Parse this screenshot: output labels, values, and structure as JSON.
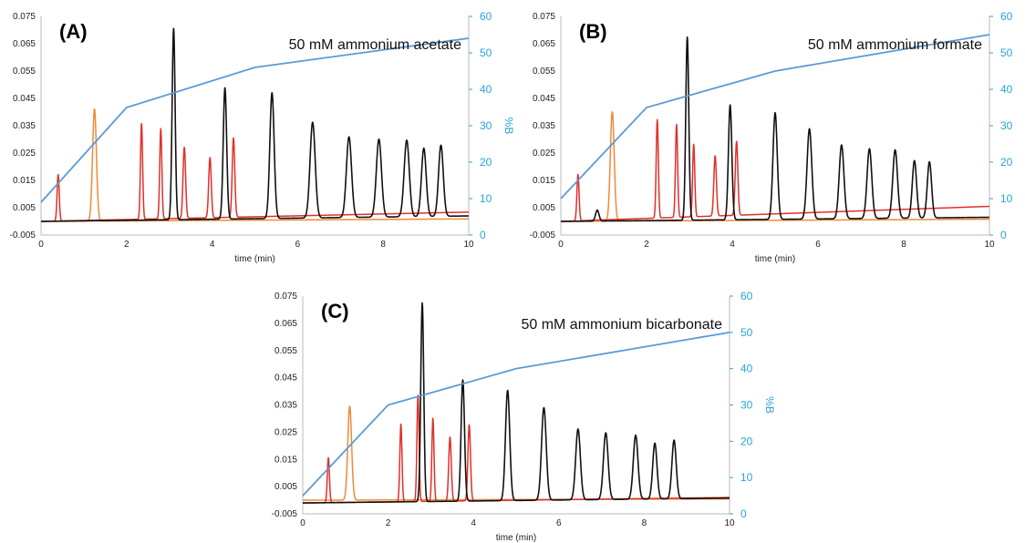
{
  "chart_data": [
    {
      "type": "line",
      "panel_label": "(A)",
      "annotation": "50 mM ammonium acetate",
      "xlabel": "time (min)",
      "ylabel": "",
      "y2label": "%B",
      "xlim": [
        0,
        10
      ],
      "ylim": [
        -0.005,
        0.075
      ],
      "y2lim": [
        0,
        60
      ],
      "x_ticks": [
        "0",
        "2",
        "4",
        "6",
        "8",
        "10"
      ],
      "y_ticks": [
        "-0.005",
        "0.005",
        "0.015",
        "0.025",
        "0.035",
        "0.045",
        "0.055",
        "0.065",
        "0.075"
      ],
      "y2_ticks": [
        "0",
        "10",
        "20",
        "30",
        "40",
        "50",
        "60"
      ],
      "colors": {
        "black": "#111111",
        "red": "#e0302a",
        "orange": "#ee8a3a",
        "blue": "#5b9bd5"
      },
      "gradient": [
        [
          0,
          9
        ],
        [
          2,
          35
        ],
        [
          5,
          46
        ],
        [
          10,
          54
        ]
      ],
      "baselines": {
        "black": [
          0.0,
          0.002
        ],
        "red": [
          0.0,
          0.0034
        ],
        "orange": [
          0.0,
          0.0009
        ]
      },
      "black_peaks": [
        [
          3.1,
          0.07,
          0.035
        ],
        [
          4.3,
          0.048,
          0.04
        ],
        [
          5.4,
          0.046,
          0.05
        ],
        [
          6.35,
          0.035,
          0.06
        ],
        [
          7.2,
          0.0295,
          0.06
        ],
        [
          7.9,
          0.0285,
          0.06
        ],
        [
          8.55,
          0.028,
          0.06
        ],
        [
          8.95,
          0.025,
          0.055
        ],
        [
          9.35,
          0.026,
          0.055
        ]
      ],
      "red_peaks": [
        [
          0.4,
          0.017,
          0.025
        ],
        [
          2.35,
          0.035,
          0.025
        ],
        [
          2.8,
          0.033,
          0.025
        ],
        [
          3.35,
          0.026,
          0.03
        ],
        [
          3.95,
          0.022,
          0.03
        ],
        [
          4.5,
          0.029,
          0.03
        ]
      ],
      "orange_peaks": [
        [
          1.25,
          0.041,
          0.045
        ]
      ]
    },
    {
      "type": "line",
      "panel_label": "(B)",
      "annotation": "50 mM ammonium formate",
      "xlabel": "time (min)",
      "ylabel": "",
      "y2label": "%B",
      "xlim": [
        0,
        10
      ],
      "ylim": [
        -0.005,
        0.075
      ],
      "y2lim": [
        0,
        60
      ],
      "x_ticks": [
        "0",
        "2",
        "4",
        "6",
        "8",
        "10"
      ],
      "y_ticks": [
        "-0.005",
        "0.005",
        "0.015",
        "0.025",
        "0.035",
        "0.045",
        "0.055",
        "0.065",
        "0.075"
      ],
      "y2_ticks": [
        "0",
        "10",
        "20",
        "30",
        "40",
        "50",
        "60"
      ],
      "colors": {
        "black": "#111111",
        "red": "#e0302a",
        "orange": "#ee8a3a",
        "blue": "#5b9bd5"
      },
      "gradient": [
        [
          0,
          10
        ],
        [
          2,
          35
        ],
        [
          5,
          45
        ],
        [
          10,
          55
        ]
      ],
      "baselines": {
        "black": [
          0.0,
          0.0015
        ],
        "red": [
          0.0,
          0.0055
        ],
        "orange": [
          0.0,
          0.0008
        ]
      },
      "black_peaks": [
        [
          0.85,
          0.004,
          0.04
        ],
        [
          2.95,
          0.067,
          0.035
        ],
        [
          3.95,
          0.042,
          0.04
        ],
        [
          5.0,
          0.039,
          0.05
        ],
        [
          5.8,
          0.033,
          0.055
        ],
        [
          6.55,
          0.027,
          0.055
        ],
        [
          7.2,
          0.0255,
          0.055
        ],
        [
          7.8,
          0.025,
          0.055
        ],
        [
          8.25,
          0.021,
          0.05
        ],
        [
          8.6,
          0.0205,
          0.05
        ]
      ],
      "red_peaks": [
        [
          0.4,
          0.017,
          0.025
        ],
        [
          2.25,
          0.036,
          0.025
        ],
        [
          2.7,
          0.034,
          0.025
        ],
        [
          3.1,
          0.0265,
          0.025
        ],
        [
          3.6,
          0.022,
          0.03
        ],
        [
          4.1,
          0.027,
          0.03
        ]
      ],
      "orange_peaks": [
        [
          1.2,
          0.04,
          0.045
        ]
      ]
    },
    {
      "type": "line",
      "panel_label": "(C)",
      "annotation": "50 mM ammonium bicarbonate",
      "xlabel": "time (min)",
      "ylabel": "",
      "y2label": "%B",
      "xlim": [
        0,
        10
      ],
      "ylim": [
        -0.005,
        0.075
      ],
      "y2lim": [
        0,
        60
      ],
      "x_ticks": [
        "0",
        "2",
        "4",
        "6",
        "8",
        "10"
      ],
      "y_ticks": [
        "-0.005",
        "0.005",
        "0.015",
        "0.025",
        "0.035",
        "0.045",
        "0.055",
        "0.065",
        "0.075"
      ],
      "y2_ticks": [
        "0",
        "10",
        "20",
        "30",
        "40",
        "50",
        "60"
      ],
      "colors": {
        "black": "#111111",
        "red": "#e0302a",
        "orange": "#ee8a3a",
        "blue": "#5b9bd5"
      },
      "gradient": [
        [
          0,
          5
        ],
        [
          2,
          30
        ],
        [
          5,
          40
        ],
        [
          10,
          50
        ]
      ],
      "baselines": {
        "black": [
          -0.001,
          0.0008
        ],
        "red": [
          -0.001,
          0.001
        ],
        "orange": [
          0.0,
          0.0005
        ]
      },
      "black_peaks": [
        [
          2.8,
          0.073,
          0.035
        ],
        [
          3.75,
          0.0445,
          0.04
        ],
        [
          4.8,
          0.0405,
          0.05
        ],
        [
          5.65,
          0.034,
          0.055
        ],
        [
          6.45,
          0.026,
          0.055
        ],
        [
          7.1,
          0.0245,
          0.055
        ],
        [
          7.8,
          0.0235,
          0.055
        ],
        [
          8.25,
          0.0205,
          0.05
        ],
        [
          8.7,
          0.0215,
          0.05
        ]
      ],
      "red_peaks": [
        [
          0.6,
          0.0165,
          0.025
        ],
        [
          2.3,
          0.0285,
          0.025
        ],
        [
          2.7,
          0.039,
          0.025
        ],
        [
          3.05,
          0.0305,
          0.025
        ],
        [
          3.45,
          0.0235,
          0.03
        ],
        [
          3.9,
          0.028,
          0.03
        ]
      ],
      "orange_peaks": [
        [
          1.1,
          0.0345,
          0.045
        ]
      ]
    }
  ]
}
